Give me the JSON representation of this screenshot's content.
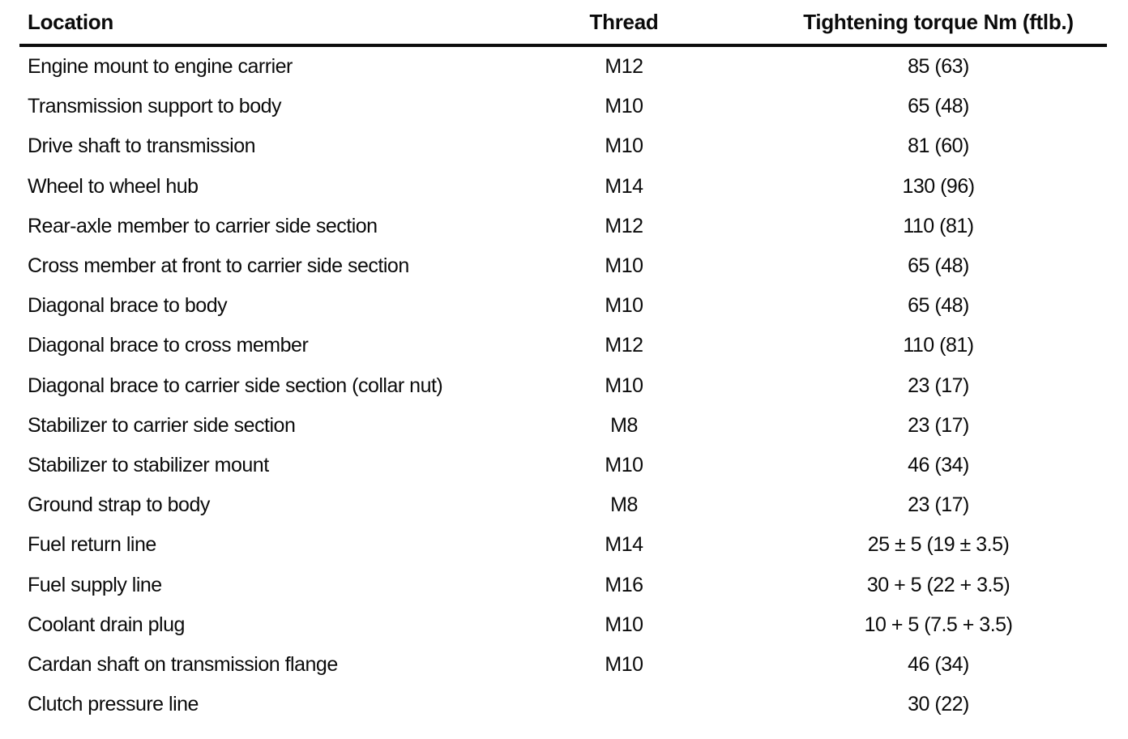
{
  "table": {
    "columns": [
      {
        "label": "Location"
      },
      {
        "label": "Thread"
      },
      {
        "label": "Tightening torque Nm (ftlb.)"
      }
    ],
    "rows": [
      {
        "location": "Engine mount to engine carrier",
        "thread": "M12",
        "torque": "85 (63)"
      },
      {
        "location": "Transmission support to body",
        "thread": "M10",
        "torque": "65 (48)"
      },
      {
        "location": "Drive shaft to transmission",
        "thread": "M10",
        "torque": "81 (60)"
      },
      {
        "location": "Wheel to wheel hub",
        "thread": "M14",
        "torque": "130 (96)"
      },
      {
        "location": "Rear-axle member to carrier side section",
        "thread": "M12",
        "torque": "110 (81)"
      },
      {
        "location": "Cross member at front to carrier side section",
        "thread": "M10",
        "torque": "65 (48)"
      },
      {
        "location": "Diagonal brace to body",
        "thread": "M10",
        "torque": "65 (48)"
      },
      {
        "location": "Diagonal brace to cross member",
        "thread": "M12",
        "torque": "110 (81)"
      },
      {
        "location": "Diagonal brace to carrier side section (collar nut)",
        "thread": "M10",
        "torque": "23 (17)"
      },
      {
        "location": "Stabilizer to carrier side section",
        "thread": "M8",
        "torque": "23 (17)"
      },
      {
        "location": "Stabilizer to stabilizer mount",
        "thread": "M10",
        "torque": "46 (34)"
      },
      {
        "location": "Ground strap to body",
        "thread": "M8",
        "torque": "23 (17)"
      },
      {
        "location": "Fuel return line",
        "thread": "M14",
        "torque": "25 ± 5 (19 ± 3.5)"
      },
      {
        "location": "Fuel supply line",
        "thread": "M16",
        "torque": "30 + 5 (22 + 3.5)"
      },
      {
        "location": "Coolant drain plug",
        "thread": "M10",
        "torque": "10 + 5 (7.5 + 3.5)"
      },
      {
        "location": "Cardan shaft on transmission flange",
        "thread": "M10",
        "torque": "46 (34)"
      },
      {
        "location": "Clutch pressure line",
        "thread": "",
        "torque": "30 (22)"
      }
    ]
  }
}
